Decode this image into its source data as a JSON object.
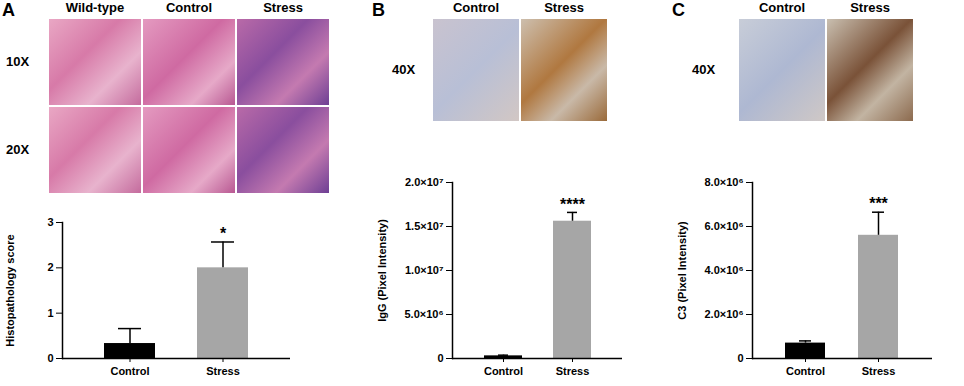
{
  "chart_data": [
    {
      "type": "bar",
      "panel": "A",
      "y_label": "Histopathology score",
      "categories": [
        "Control",
        "Stress"
      ],
      "values": [
        0.33,
        2.0
      ],
      "errors": [
        0.33,
        0.57
      ],
      "colors": [
        "#000000",
        "#a6a6a6"
      ],
      "ylim": [
        0,
        3
      ],
      "yticks": [
        0,
        1,
        2,
        3
      ],
      "annotations": [
        {
          "category": "Stress",
          "text": "*"
        }
      ]
    },
    {
      "type": "bar",
      "panel": "B",
      "y_label": "IgG (Pixel Intensity)",
      "categories": [
        "Control",
        "Stress"
      ],
      "values": [
        300000,
        15600000
      ],
      "errors": [
        80000,
        1000000
      ],
      "colors": [
        "#000000",
        "#a6a6a6"
      ],
      "ylim": [
        0,
        20000000
      ],
      "yticks": [
        0,
        {
          "value": 5000000,
          "label": "5.0×10⁶"
        },
        {
          "value": 10000000,
          "label": "1.0×10⁷"
        },
        {
          "value": 15000000,
          "label": "1.5×10⁷"
        },
        {
          "value": 20000000,
          "label": "2.0×10⁷"
        }
      ],
      "annotations": [
        {
          "category": "Stress",
          "text": "****"
        }
      ]
    },
    {
      "type": "bar",
      "panel": "C",
      "y_label": "C3 (Pixel Intensity)",
      "categories": [
        "Control",
        "Stress"
      ],
      "values": [
        700000,
        5600000
      ],
      "errors": [
        100000,
        1050000
      ],
      "colors": [
        "#000000",
        "#a6a6a6"
      ],
      "ylim": [
        0,
        8000000
      ],
      "yticks": [
        0,
        {
          "value": 2000000,
          "label": "2.0×10⁶"
        },
        {
          "value": 4000000,
          "label": "4.0×10⁶"
        },
        {
          "value": 6000000,
          "label": "6.0×10⁶"
        },
        {
          "value": 8000000,
          "label": "8.0×10⁶"
        }
      ],
      "annotations": [
        {
          "category": "Stress",
          "text": "***"
        }
      ]
    }
  ],
  "images": [
    {
      "panel": "A",
      "columns": [
        "Wild-type",
        "Control",
        "Stress"
      ],
      "rows": [
        "10X",
        "20X"
      ]
    },
    {
      "panel": "B",
      "columns": [
        "Control",
        "Stress"
      ],
      "rows": [
        "40X"
      ]
    },
    {
      "panel": "C",
      "columns": [
        "Control",
        "Stress"
      ],
      "rows": [
        "40X"
      ]
    }
  ]
}
